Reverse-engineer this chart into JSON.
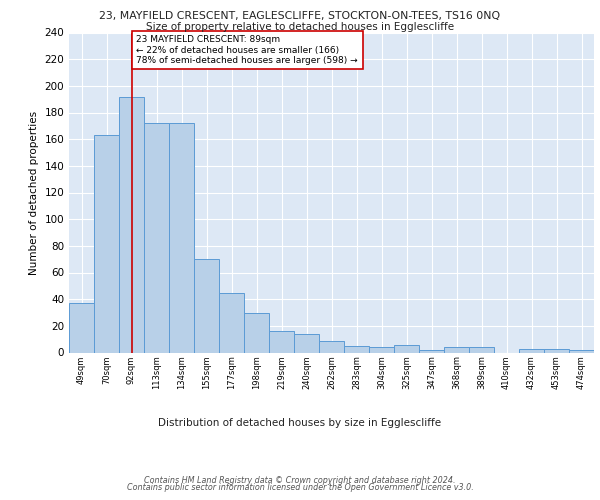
{
  "title_line1": "23, MAYFIELD CRESCENT, EAGLESCLIFFE, STOCKTON-ON-TEES, TS16 0NQ",
  "title_line2": "Size of property relative to detached houses in Egglescliffe",
  "xlabel": "Distribution of detached houses by size in Egglescliffe",
  "ylabel": "Number of detached properties",
  "categories": [
    "49sqm",
    "70sqm",
    "92sqm",
    "113sqm",
    "134sqm",
    "155sqm",
    "177sqm",
    "198sqm",
    "219sqm",
    "240sqm",
    "262sqm",
    "283sqm",
    "304sqm",
    "325sqm",
    "347sqm",
    "368sqm",
    "389sqm",
    "410sqm",
    "432sqm",
    "453sqm",
    "474sqm"
  ],
  "values": [
    37,
    163,
    192,
    172,
    172,
    70,
    45,
    30,
    16,
    14,
    9,
    5,
    4,
    6,
    2,
    4,
    4,
    0,
    3,
    3,
    2
  ],
  "bar_color": "#b8d0e8",
  "bar_edge_color": "#5b9bd5",
  "bg_color": "#dde8f5",
  "grid_color": "#ffffff",
  "vline_x": 2,
  "vline_color": "#cc0000",
  "annotation_text": "23 MAYFIELD CRESCENT: 89sqm\n← 22% of detached houses are smaller (166)\n78% of semi-detached houses are larger (598) →",
  "annotation_box_color": "#ffffff",
  "annotation_box_edge": "#cc0000",
  "footer_line1": "Contains HM Land Registry data © Crown copyright and database right 2024.",
  "footer_line2": "Contains public sector information licensed under the Open Government Licence v3.0.",
  "ylim": [
    0,
    240
  ],
  "yticks": [
    0,
    20,
    40,
    60,
    80,
    100,
    120,
    140,
    160,
    180,
    200,
    220,
    240
  ]
}
